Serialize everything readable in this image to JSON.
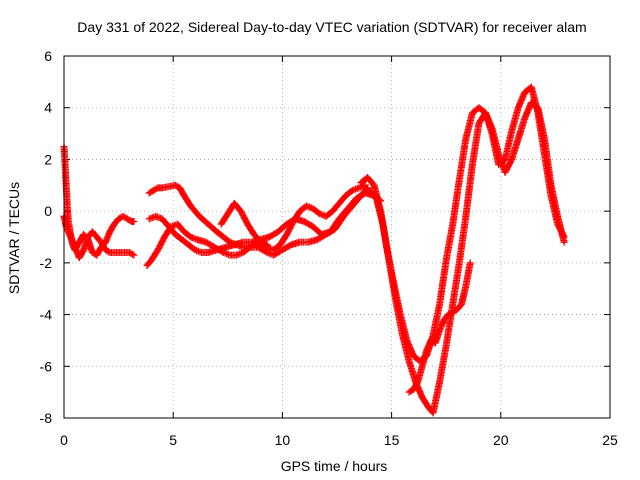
{
  "chart_data": {
    "type": "scatter",
    "title": "Day 331 of 2022, Sidereal Day-to-day VTEC variation (SDTVAR) for receiver alam",
    "xlabel": "GPS time / hours",
    "ylabel": "SDTVAR / TECUs",
    "xlim": [
      0,
      25
    ],
    "ylim": [
      -8,
      6
    ],
    "xticks": [
      "0",
      "5",
      "10",
      "15",
      "20",
      "25"
    ],
    "yticks": [
      "-8",
      "-6",
      "-4",
      "-2",
      "0",
      "2",
      "4",
      "6"
    ],
    "grid": true,
    "marker": "+",
    "color": "#ff0000",
    "series": [
      {
        "x": [
          0.0,
          0.05,
          0.1,
          0.15,
          0.2,
          0.3,
          0.4,
          0.5,
          0.7,
          0.9,
          1.1,
          1.3,
          1.5,
          1.7,
          1.9,
          2.1,
          2.3,
          2.5,
          2.7,
          2.9,
          3.1,
          3.2
        ],
        "values": [
          2.5,
          1.8,
          1.0,
          0.2,
          -0.4,
          -0.9,
          -1.3,
          -1.5,
          -1.2,
          -0.9,
          -1.1,
          -1.6,
          -1.7,
          -1.4,
          -1.2,
          -0.8,
          -0.5,
          -0.3,
          -0.2,
          -0.3,
          -0.4,
          -0.4
        ]
      },
      {
        "x": [
          0.0,
          0.1,
          0.3,
          0.5,
          0.7,
          0.9,
          1.1,
          1.3,
          1.5,
          1.7,
          1.9,
          2.1,
          2.4,
          2.7,
          3.0,
          3.2
        ],
        "values": [
          -0.2,
          -0.6,
          -1.0,
          -1.4,
          -1.8,
          -1.5,
          -1.0,
          -0.8,
          -1.0,
          -1.2,
          -1.5,
          -1.6,
          -1.6,
          -1.6,
          -1.6,
          -1.7
        ]
      },
      {
        "x": [
          3.9,
          4.1,
          4.3,
          4.5,
          4.8,
          5.1,
          5.3,
          5.5,
          5.8,
          6.2,
          6.6,
          7.0,
          7.3,
          7.6,
          7.9,
          8.2,
          8.5,
          8.8,
          9.1,
          9.3
        ],
        "values": [
          0.7,
          0.8,
          0.9,
          0.9,
          0.95,
          1.0,
          0.9,
          0.6,
          0.2,
          -0.2,
          -0.5,
          -0.8,
          -1.0,
          -1.2,
          -1.3,
          -1.4,
          -1.4,
          -1.3,
          -1.2,
          -1.3
        ]
      },
      {
        "x": [
          3.8,
          4.0,
          4.3,
          4.6,
          4.9,
          5.2,
          5.5,
          5.8,
          6.1,
          6.5,
          6.9,
          7.3,
          7.6,
          7.9,
          8.2,
          8.5,
          8.9,
          9.3,
          9.6,
          10.0,
          10.4,
          10.8,
          11.2,
          11.6,
          12.0,
          12.4,
          12.8,
          13.2,
          13.6,
          13.9
        ],
        "values": [
          -2.1,
          -1.9,
          -1.5,
          -1.0,
          -0.6,
          -0.5,
          -0.8,
          -1.0,
          -1.1,
          -1.2,
          -1.4,
          -1.6,
          -1.7,
          -1.7,
          -1.6,
          -1.4,
          -1.4,
          -1.6,
          -1.7,
          -1.5,
          -1.3,
          -1.2,
          -1.2,
          -1.1,
          -0.9,
          -0.7,
          -0.2,
          0.2,
          0.6,
          0.9
        ]
      },
      {
        "x": [
          3.9,
          4.2,
          4.5,
          4.8,
          5.1,
          5.4,
          5.7,
          6.0,
          6.3,
          6.6,
          7.0,
          7.4,
          7.8,
          8.2,
          8.6,
          9.0,
          9.4,
          9.8,
          10.2,
          10.6,
          11.0,
          11.4,
          11.8,
          12.2,
          12.6,
          13.0,
          13.4,
          13.8,
          14.2,
          14.5
        ],
        "values": [
          -0.3,
          -0.2,
          -0.3,
          -0.6,
          -0.9,
          -1.1,
          -1.3,
          -1.5,
          -1.6,
          -1.6,
          -1.5,
          -1.4,
          -1.3,
          -1.2,
          -1.2,
          -1.1,
          -1.0,
          -0.8,
          -0.5,
          -0.3,
          -0.4,
          -0.6,
          -0.9,
          -0.8,
          -0.3,
          0.1,
          0.5,
          0.7,
          0.6,
          0.4
        ]
      },
      {
        "x": [
          7.2,
          7.5,
          7.8,
          8.1,
          8.4,
          8.7,
          9.0,
          9.3,
          9.6,
          9.9,
          10.2,
          10.5,
          10.8,
          11.1,
          11.4,
          11.7,
          12.0,
          12.3,
          12.6,
          12.9,
          13.2,
          13.5,
          13.8
        ],
        "values": [
          -0.5,
          -0.1,
          0.3,
          0.0,
          -0.5,
          -0.9,
          -1.2,
          -1.4,
          -1.5,
          -1.3,
          -0.9,
          -0.4,
          0.0,
          0.2,
          0.1,
          -0.1,
          -0.2,
          0.0,
          0.3,
          0.6,
          0.8,
          0.9,
          1.0
        ]
      },
      {
        "x": [
          13.6,
          13.9,
          14.2,
          14.5,
          14.8,
          15.1,
          15.4,
          15.7,
          16.0,
          16.3,
          16.6,
          16.9,
          17.2,
          17.5,
          17.8,
          18.1,
          18.4,
          18.7,
          19.0,
          19.3,
          19.6,
          19.9,
          20.2,
          20.5,
          20.8,
          21.1,
          21.4,
          21.7,
          22.0,
          22.3,
          22.6,
          22.9
        ],
        "values": [
          1.1,
          1.3,
          1.0,
          0.0,
          -1.5,
          -2.8,
          -4.0,
          -5.0,
          -5.6,
          -5.8,
          -5.6,
          -4.8,
          -3.6,
          -1.9,
          -0.5,
          1.2,
          2.8,
          3.8,
          4.0,
          3.8,
          3.0,
          1.8,
          2.0,
          3.1,
          4.0,
          4.6,
          4.8,
          3.8,
          2.2,
          0.6,
          -0.5,
          -1.0
        ]
      },
      {
        "x": [
          14.0,
          14.3,
          14.6,
          14.9,
          15.2,
          15.5,
          15.8,
          16.1,
          16.4,
          16.7,
          16.9,
          17.2,
          17.5,
          17.8,
          18.1,
          18.4,
          18.7,
          19.0,
          19.3,
          19.6,
          19.9,
          20.2,
          20.5,
          20.8,
          21.1,
          21.4,
          21.7,
          22.0,
          22.3,
          22.6,
          22.9
        ],
        "values": [
          0.8,
          0.5,
          -0.5,
          -2.0,
          -3.5,
          -4.8,
          -5.8,
          -6.6,
          -7.2,
          -7.6,
          -7.8,
          -6.6,
          -5.2,
          -3.6,
          -2.0,
          -0.2,
          1.8,
          3.4,
          3.8,
          3.2,
          2.2,
          1.5,
          2.0,
          2.8,
          3.6,
          4.2,
          4.0,
          2.8,
          1.0,
          -0.2,
          -1.2
        ]
      },
      {
        "x": [
          15.8,
          16.0,
          16.2,
          16.4,
          16.6,
          16.8,
          17.0,
          17.2,
          17.4,
          17.6,
          17.8,
          18.0,
          18.2,
          18.4,
          18.6
        ],
        "values": [
          -7.0,
          -6.9,
          -6.6,
          -6.0,
          -5.4,
          -5.0,
          -5.1,
          -4.6,
          -4.2,
          -4.0,
          -3.9,
          -3.8,
          -3.6,
          -2.9,
          -2.0
        ]
      }
    ]
  }
}
